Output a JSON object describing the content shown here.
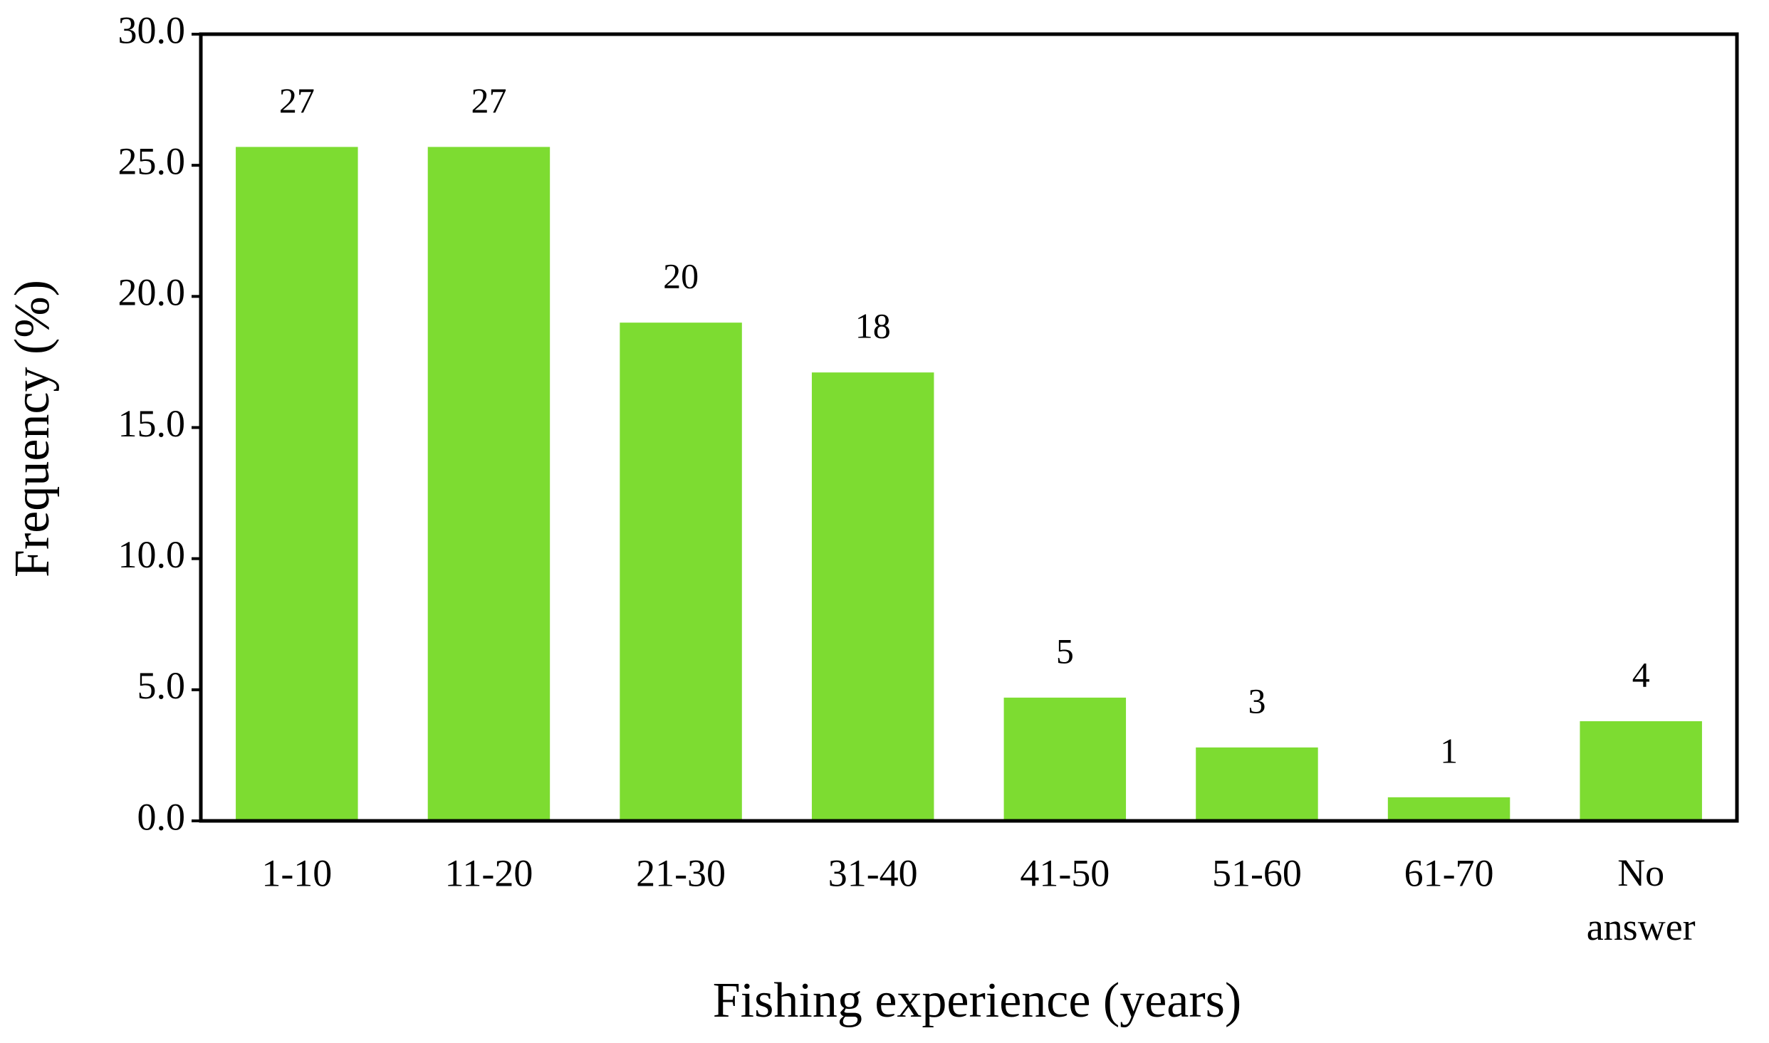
{
  "chart_data": {
    "type": "bar",
    "x_label": "Fishing experience (years)",
    "y_label": "Frequency (%)",
    "categories": [
      "1-10",
      "11-20",
      "21-30",
      "31-40",
      "41-50",
      "51-60",
      "61-70",
      "No answer"
    ],
    "values": [
      25.7,
      25.7,
      19.0,
      17.1,
      4.7,
      2.8,
      0.9,
      3.8
    ],
    "counts": [
      27,
      27,
      20,
      18,
      5,
      3,
      1,
      4
    ],
    "color": "#7ddc31",
    "ylim": [
      0,
      30
    ],
    "yticks": [
      {
        "value": 0,
        "label": "0.0"
      },
      {
        "value": 5,
        "label": "5.0"
      },
      {
        "value": 10,
        "label": "10.0"
      },
      {
        "value": 15,
        "label": "15.0"
      },
      {
        "value": 20,
        "label": "20.0"
      },
      {
        "value": 25,
        "label": "25.0"
      },
      {
        "value": 30,
        "label": "30.0"
      }
    ]
  }
}
